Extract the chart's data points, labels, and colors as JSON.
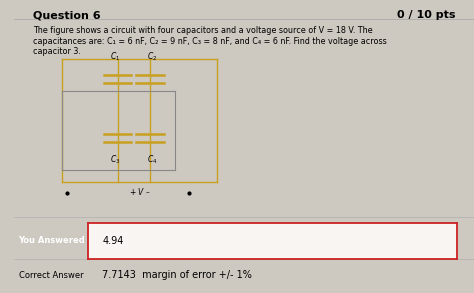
{
  "title": "Question 6",
  "score": "0 / 10 pts",
  "body_text_line1": "The figure shows a circuit with four capacitors and a voltage source of V = 18 V. The",
  "body_text_line2": "capacitances are: C₁ = 6 nF, C₂ = 9 nF, C₃ = 8 nF, and C₄ = 6 nF. Find the voltage across",
  "body_text_line3": "capacitor 3.",
  "you_answered_label": "You Answered",
  "you_answered_value": "4.94",
  "correct_answer_label": "Correct Answer",
  "correct_answer_value": "7.7143  margin of error +/- 1%",
  "bg_color": "#cdc8c0",
  "panel_color": "#eeebe6",
  "panel_border": "#aaaaaa",
  "red_label_bg": "#cc2222",
  "answer_box_border": "#cc2222",
  "answer_box_fill": "#f8f5f2",
  "circuit_wire_color": "#c8a020",
  "circuit_box_color": "#888888",
  "left_strip_color": "#b0aca4"
}
